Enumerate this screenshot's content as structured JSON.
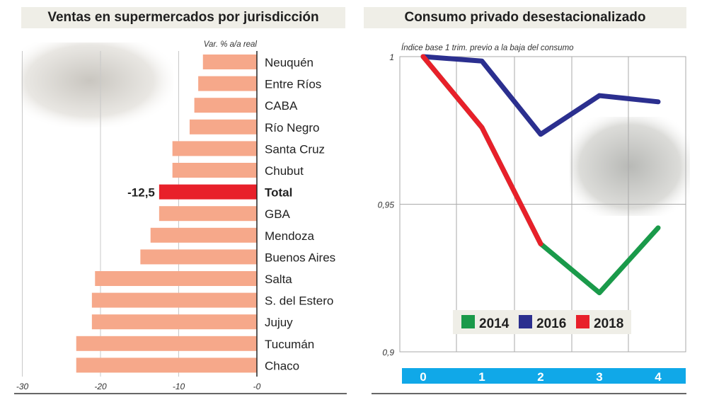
{
  "chart_data": [
    {
      "type": "bar",
      "title": "Ventas en supermercados por jurisdicción",
      "subtitle": "Var. % a/a real",
      "orientation": "horizontal",
      "categories": [
        "Neuquén",
        "Entre Ríos",
        "CABA",
        "Río Negro",
        "Santa Cruz",
        "Chubut",
        "Total",
        "GBA",
        "Mendoza",
        "Buenos Aires",
        "Salta",
        "S. del Estero",
        "Jujuy",
        "Tucumán",
        "Chaco"
      ],
      "values": [
        -6.9,
        -7.5,
        -8.0,
        -8.6,
        -10.8,
        -10.8,
        -12.5,
        -12.5,
        -13.6,
        -14.9,
        -20.7,
        -21.1,
        -21.1,
        -23.1,
        -23.1
      ],
      "highlight": {
        "category": "Total",
        "label": "-12,5",
        "color": "#e8202a"
      },
      "bar_color": "#f6a88a",
      "xlim": [
        -30,
        0
      ],
      "xticks": [
        "-30",
        "-20",
        "-10",
        "-0"
      ],
      "grid": true
    },
    {
      "type": "line",
      "title": "Consumo privado desestacionalizado",
      "subtitle": "Índice base 1 trim. previo a la baja del consumo",
      "x": [
        0,
        1,
        2,
        3,
        4
      ],
      "xticks": [
        "0",
        "1",
        "2",
        "3",
        "4"
      ],
      "ylim": [
        0.9,
        1
      ],
      "yticks": [
        "0,9",
        "0,95",
        "1"
      ],
      "grid": true,
      "legend": "bottom-center",
      "series": [
        {
          "name": "2014",
          "color": "#1a9a4a",
          "values": [
            1,
            0.976,
            0.9366,
            0.92,
            0.942
          ]
        },
        {
          "name": "2016",
          "color": "#2b2f8f",
          "values": [
            1,
            0.9985,
            0.9737,
            0.9868,
            0.9847
          ]
        },
        {
          "name": "2018",
          "color": "#e8202a",
          "values": [
            1,
            0.976,
            0.9366,
            null,
            null
          ]
        }
      ]
    }
  ]
}
